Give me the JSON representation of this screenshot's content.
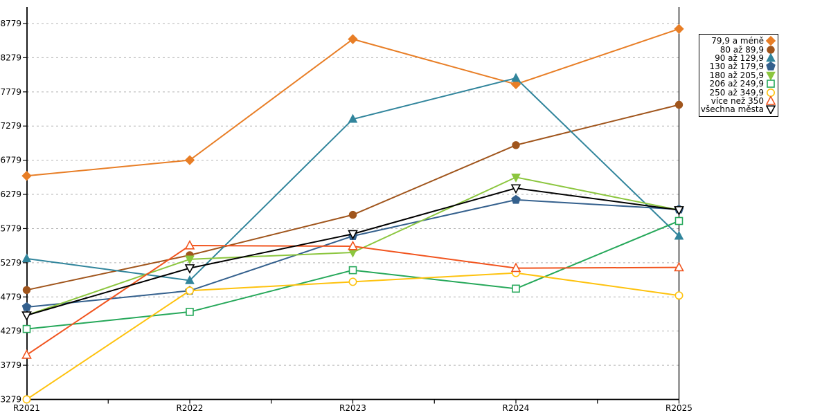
{
  "figure": {
    "background": "#ffffff"
  },
  "chart_data": {
    "type": "line",
    "title": "",
    "xlabel": "",
    "ylabel": "",
    "categories": [
      "R2021",
      "R2022",
      "R2023",
      "R2024",
      "R2025"
    ],
    "yticks": [
      3279,
      3779,
      4279,
      4779,
      5279,
      5779,
      6279,
      6779,
      7279,
      7779,
      8279,
      8779
    ],
    "ylim": [
      3279,
      9020
    ],
    "grid": "horizontal-dashed",
    "grid_color": "#b3b3b3",
    "legend_position": "top-right-outside",
    "series": [
      {
        "name": "79,9 a méně",
        "color": "#E87E26",
        "marker": "diamond",
        "filled": true,
        "values": [
          6550,
          6780,
          8550,
          7890,
          8700
        ]
      },
      {
        "name": "80 až 89,9",
        "color": "#A0551C",
        "marker": "circle",
        "filled": true,
        "values": [
          4880,
          5390,
          5980,
          7000,
          7590
        ]
      },
      {
        "name": "90 až 129,9",
        "color": "#31859C",
        "marker": "triangle-up",
        "filled": true,
        "values": [
          5340,
          5020,
          7380,
          7980,
          5670
        ]
      },
      {
        "name": "130 až 179,9",
        "color": "#34608D",
        "marker": "pentagon",
        "filled": true,
        "values": [
          4630,
          4870,
          5670,
          6200,
          6060
        ]
      },
      {
        "name": "180 až 205,9",
        "color": "#8CC63F",
        "marker": "triangle-down",
        "filled": true,
        "values": [
          4510,
          5330,
          5430,
          6530,
          6050
        ]
      },
      {
        "name": "206 až 249,9",
        "color": "#26A85A",
        "marker": "square",
        "filled": false,
        "values": [
          4310,
          4560,
          5170,
          4900,
          5890
        ]
      },
      {
        "name": "250 až 349,9",
        "color": "#FEC20E",
        "marker": "circle",
        "filled": false,
        "values": [
          3280,
          4870,
          5000,
          5130,
          4800
        ]
      },
      {
        "name": "více než 350",
        "color": "#F1541E",
        "marker": "triangle-up",
        "filled": false,
        "values": [
          3930,
          5530,
          5520,
          5200,
          5210
        ]
      },
      {
        "name": "všechna města",
        "color": "#000000",
        "marker": "triangle-down",
        "filled": false,
        "values": [
          4510,
          5200,
          5700,
          6370,
          6050
        ]
      }
    ]
  }
}
